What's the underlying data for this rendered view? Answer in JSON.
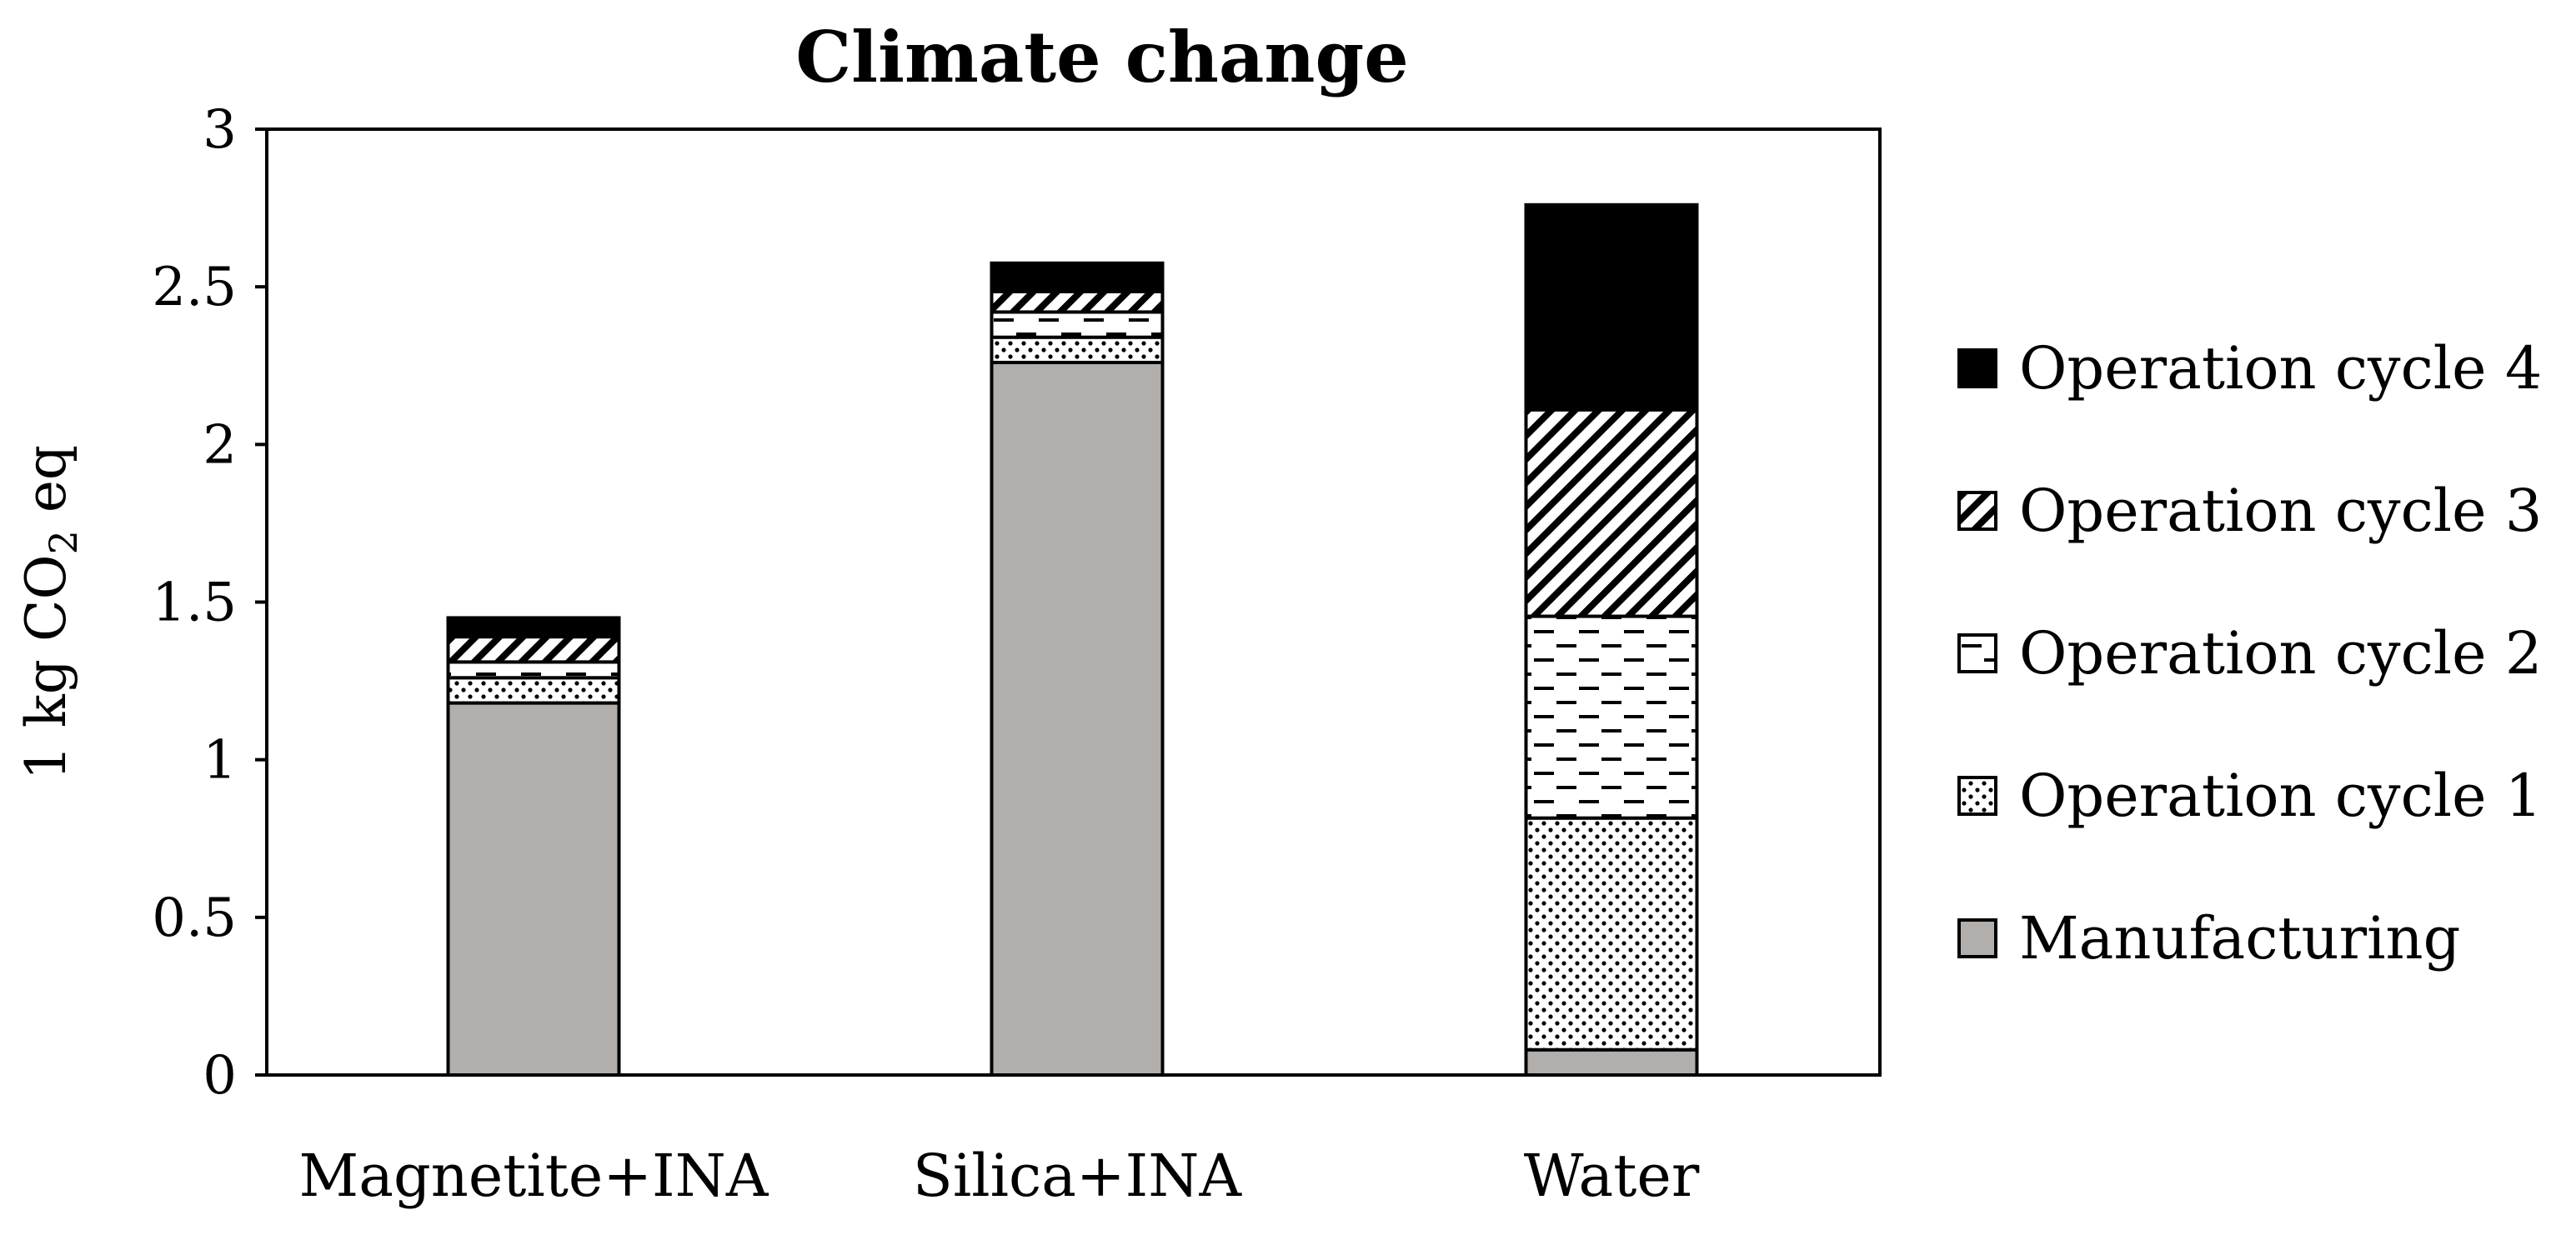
{
  "chart_data": {
    "type": "bar",
    "stacked": true,
    "title": "Climate change",
    "xlabel": "",
    "ylabel": "1 kg CO2 eq",
    "ylabel_parts": {
      "pre": "1 kg CO",
      "sub": "2",
      "post": " eq"
    },
    "ylim": [
      0,
      3
    ],
    "yticks": [
      "0",
      "0.5",
      "1",
      "1.5",
      "2",
      "2.5",
      "3"
    ],
    "ytick_values": [
      0,
      0.5,
      1,
      1.5,
      2,
      2.5,
      3
    ],
    "categories": [
      "Magnetite+INA",
      "Silica+INA",
      "Water"
    ],
    "series": [
      {
        "name": "Manufacturing",
        "values": [
          1.18,
          2.26,
          0.08
        ],
        "pattern": "solid-gray",
        "color": "#b2aeab"
      },
      {
        "name": "Operation cycle 1",
        "values": [
          0.08,
          0.08,
          0.735
        ],
        "pattern": "dots",
        "color": "#ffffff"
      },
      {
        "name": "Operation cycle 2",
        "values": [
          0.05,
          0.08,
          0.64
        ],
        "pattern": "dashes",
        "color": "#ffffff"
      },
      {
        "name": "Operation cycle 3",
        "values": [
          0.08,
          0.065,
          0.655
        ],
        "pattern": "diagonal",
        "color": "#ffffff"
      },
      {
        "name": "Operation cycle 4",
        "values": [
          0.06,
          0.09,
          0.65
        ],
        "pattern": "solid-black",
        "color": "#000000"
      }
    ],
    "legend": {
      "placement": "right",
      "order": [
        "Operation cycle 4",
        "Operation cycle 3",
        "Operation cycle 2",
        "Operation cycle 1",
        "Manufacturing"
      ]
    },
    "grid": false
  }
}
